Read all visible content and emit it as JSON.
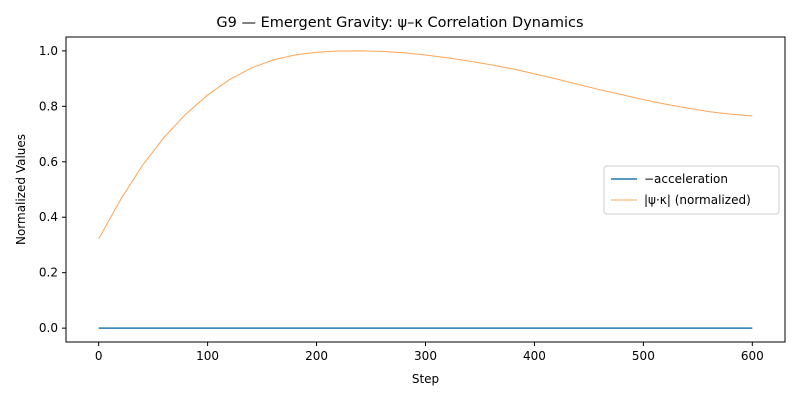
{
  "chart_data": {
    "type": "line",
    "title": "G9 — Emergent Gravity: ψ–κ Correlation Dynamics",
    "xlabel": "Step",
    "ylabel": "Normalized Values",
    "xlim": [
      -30,
      630
    ],
    "ylim": [
      -0.05,
      1.05
    ],
    "xticks": [
      0,
      100,
      200,
      300,
      400,
      500,
      600
    ],
    "yticks": [
      0.0,
      0.2,
      0.4,
      0.6,
      0.8,
      1.0
    ],
    "xtick_labels": [
      "0",
      "100",
      "200",
      "300",
      "400",
      "500",
      "600"
    ],
    "ytick_labels": [
      "0.0",
      "0.2",
      "0.4",
      "0.6",
      "0.8",
      "1.0"
    ],
    "grid": false,
    "legend_position": "center-right",
    "series": [
      {
        "name": "−acceleration",
        "color": "#1f77b4",
        "x": [
          0,
          600
        ],
        "y": [
          0.0,
          0.0
        ]
      },
      {
        "name": "|ψ·κ| (normalized)",
        "color": "#ff7f0e",
        "x": [
          0,
          20,
          40,
          60,
          80,
          100,
          120,
          140,
          160,
          180,
          200,
          220,
          240,
          260,
          280,
          300,
          320,
          340,
          360,
          380,
          400,
          420,
          440,
          460,
          480,
          500,
          520,
          540,
          560,
          580,
          600
        ],
        "y": [
          0.322,
          0.463,
          0.586,
          0.688,
          0.772,
          0.841,
          0.896,
          0.938,
          0.967,
          0.985,
          0.995,
          0.9995,
          1.0,
          0.998,
          0.993,
          0.985,
          0.975,
          0.963,
          0.95,
          0.935,
          0.917,
          0.899,
          0.879,
          0.86,
          0.842,
          0.824,
          0.808,
          0.794,
          0.781,
          0.772,
          0.765
        ]
      }
    ]
  }
}
